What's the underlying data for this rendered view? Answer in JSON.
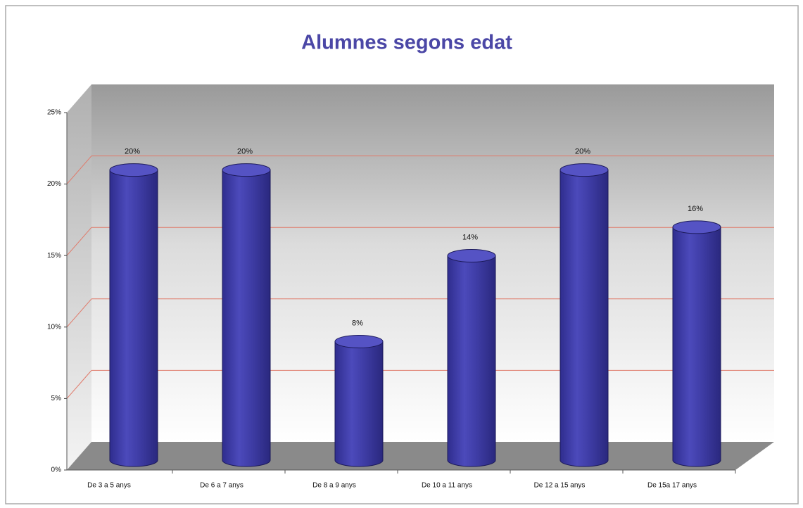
{
  "chart_data": {
    "type": "bar",
    "title": "Alumnes segons edat",
    "categories": [
      "De 3 a 5 anys",
      "De 6 a 7 anys",
      "De 8 a 9 anys",
      "De 10 a 11 anys",
      "De 12 a 15 anys",
      "De 15a 17 anys"
    ],
    "values": [
      20,
      20,
      8,
      14,
      20,
      16
    ],
    "value_labels": [
      "20%",
      "20%",
      "8%",
      "14%",
      "20%",
      "16%"
    ],
    "color": "#3f3da6",
    "ylim": [
      0,
      25
    ],
    "yticks": [
      {
        "value": 0,
        "label": "0%"
      },
      {
        "value": 5,
        "label": "5%"
      },
      {
        "value": 10,
        "label": "10%"
      },
      {
        "value": 15,
        "label": "15%"
      },
      {
        "value": 20,
        "label": "20%"
      },
      {
        "value": 25,
        "label": "25%"
      }
    ],
    "grid": true
  }
}
